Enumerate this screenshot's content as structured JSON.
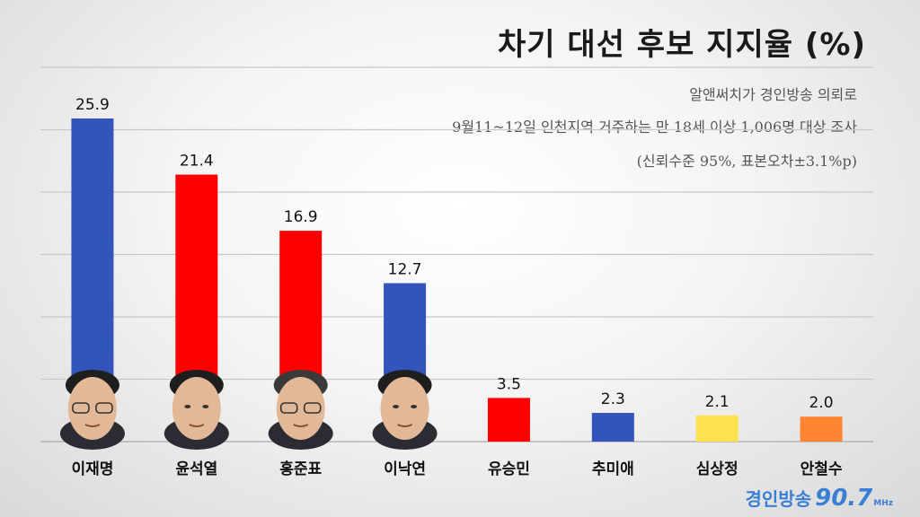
{
  "title": "차기 대선 후보 지지율 (%)",
  "notes": [
    "알앤써치가 경인방송 의뢰로",
    "9월11~12일 인천지역 거주하는 만 18세 이상 1,006명 대상 조사",
    "(신뢰수준 95%, 표본오차±3.1%p)"
  ],
  "logo": {
    "name": "경인방송",
    "freq": "90.7",
    "unit": "MHz"
  },
  "chart_data": {
    "type": "bar",
    "title": "차기 대선 후보 지지율 (%)",
    "categories": [
      "이재명",
      "윤석열",
      "홍준표",
      "이낙연",
      "유승민",
      "추미애",
      "심상정",
      "안철수"
    ],
    "values": [
      25.9,
      21.4,
      16.9,
      12.7,
      3.5,
      2.3,
      2.1,
      2.0
    ],
    "value_labels": [
      "25.9",
      "21.4",
      "16.9",
      "12.7",
      "3.5",
      "2.3",
      "2.1",
      "2.0"
    ],
    "colors": [
      "#3355bb",
      "#ff0000",
      "#ff0000",
      "#3355bb",
      "#ff0000",
      "#3355bb",
      "#ffe14d",
      "#ff8533"
    ],
    "portraits": [
      "이재명",
      "윤석열",
      "홍준표",
      "이낙연"
    ],
    "ylim": [
      0,
      30
    ],
    "grid": true,
    "xlabel": "",
    "ylabel": ""
  }
}
